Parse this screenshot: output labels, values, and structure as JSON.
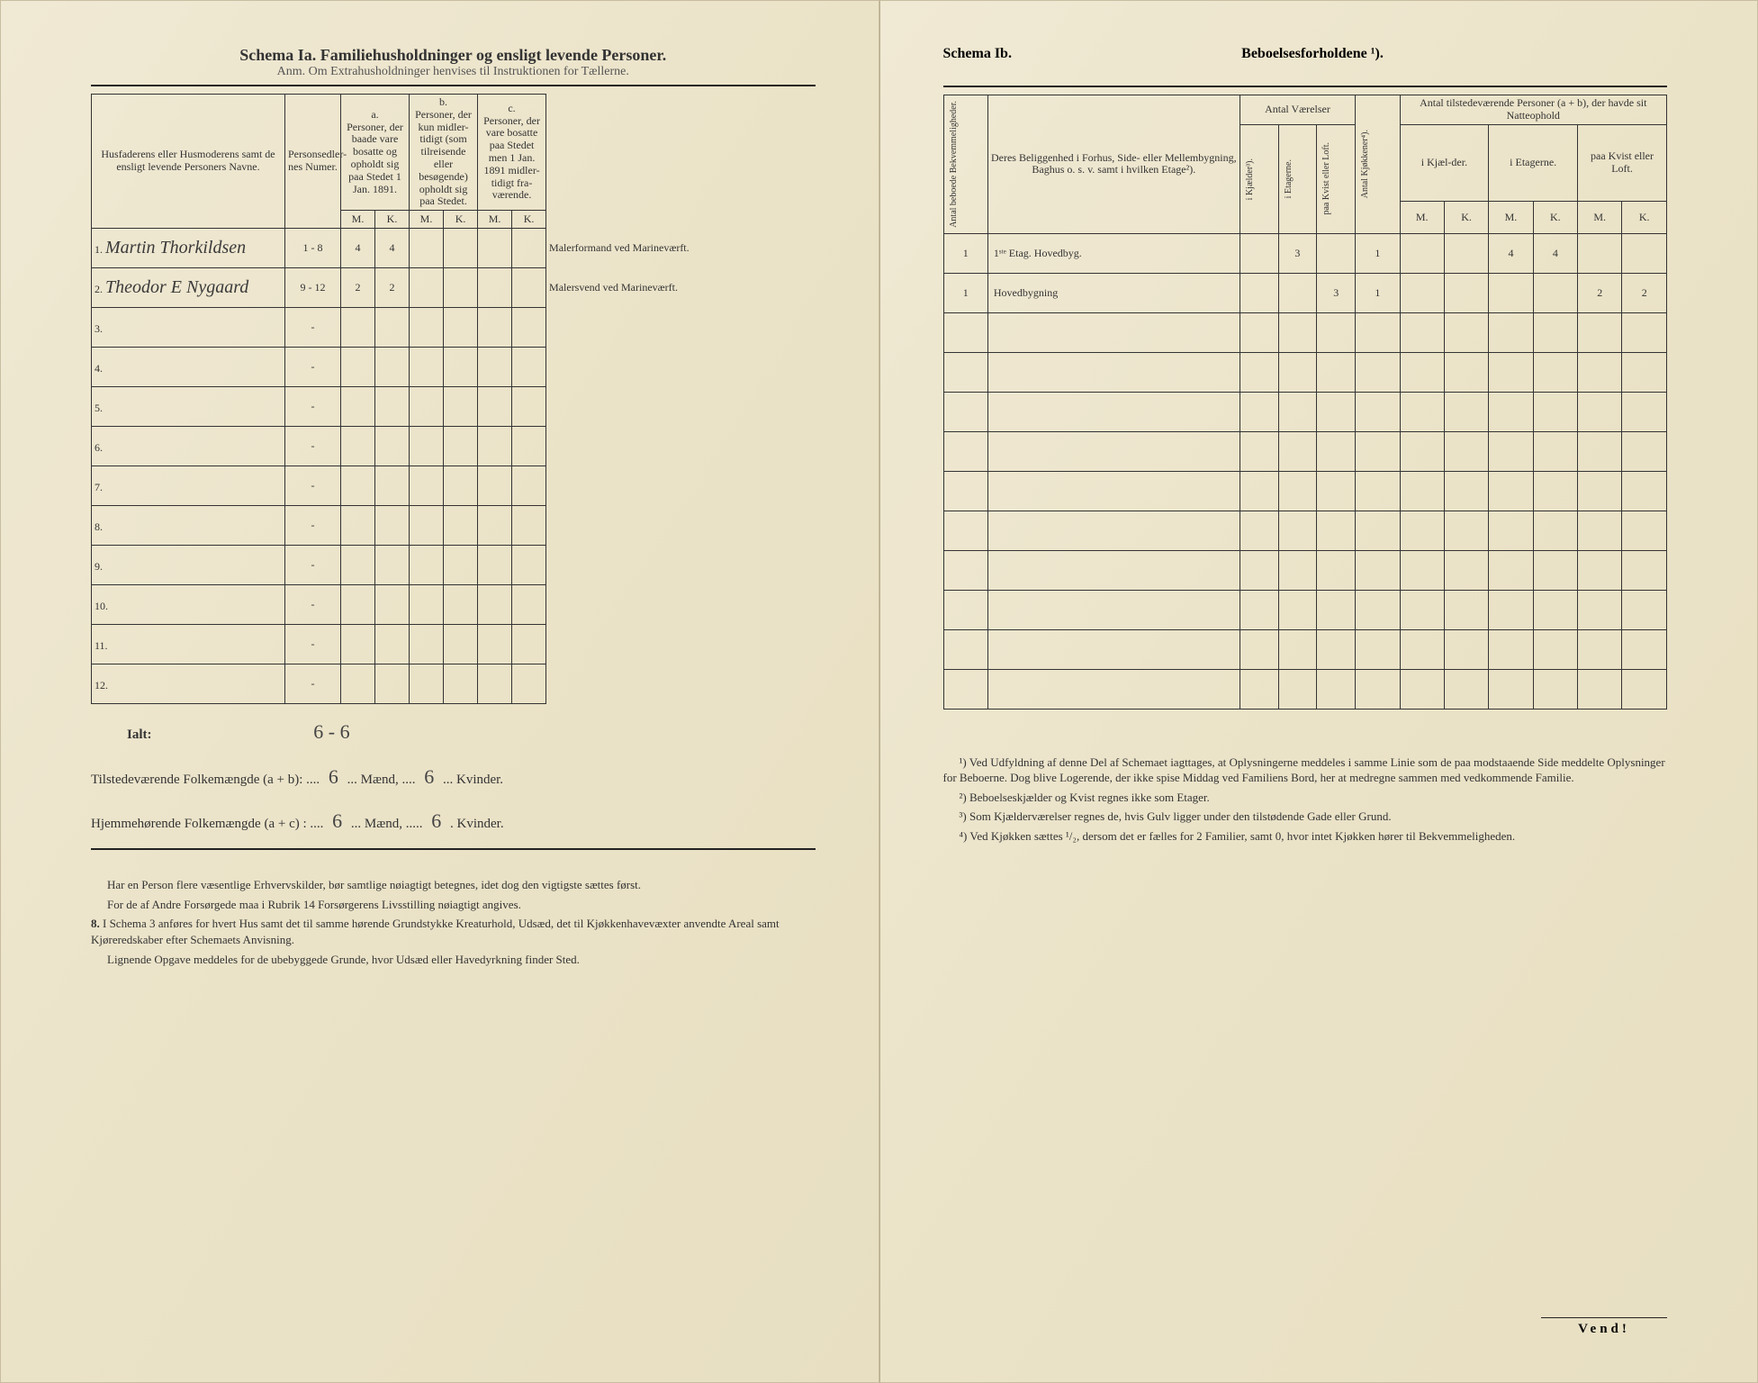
{
  "left": {
    "schema_label": "Schema Ia.",
    "schema_title": "Familiehusholdninger og ensligt levende Personer.",
    "subtitle": "Anm. Om Extrahusholdninger henvises til Instruktionen for Tællerne.",
    "head_name": "Husfaderens eller Husmoderens samt de ensligt levende Personers Navne.",
    "head_numer": "Personsedler-nes Numer.",
    "head_a": "a.",
    "head_a_text": "Personer, der baade vare bosatte og opholdt sig paa Stedet 1 Jan. 1891.",
    "head_b": "b.",
    "head_b_text": "Personer, der kun midler-tidigt (som tilreisende eller besøgende) opholdt sig paa Stedet.",
    "head_c": "c.",
    "head_c_text": "Personer, der vare bosatte paa Stedet men 1 Jan. 1891 midler-tidigt fra-værende.",
    "m": "M.",
    "k": "K.",
    "rows": [
      {
        "n": "1.",
        "name": "Martin Thorkildsen",
        "numer": "1 - 8",
        "aM": "4",
        "aK": "4",
        "note": "Malerformand ved Marineværft."
      },
      {
        "n": "2.",
        "name": "Theodor E Nygaard",
        "numer": "9 - 12",
        "aM": "2",
        "aK": "2",
        "note": "Malersvend ved Marineværft."
      },
      {
        "n": "3.",
        "name": "",
        "numer": "-"
      },
      {
        "n": "4.",
        "name": "",
        "numer": "-"
      },
      {
        "n": "5.",
        "name": "",
        "numer": "-"
      },
      {
        "n": "6.",
        "name": "",
        "numer": "-"
      },
      {
        "n": "7.",
        "name": "",
        "numer": "-"
      },
      {
        "n": "8.",
        "name": "",
        "numer": "-"
      },
      {
        "n": "9.",
        "name": "",
        "numer": "-"
      },
      {
        "n": "10.",
        "name": "",
        "numer": "-"
      },
      {
        "n": "11.",
        "name": "",
        "numer": "-"
      },
      {
        "n": "12.",
        "name": "",
        "numer": "-"
      }
    ],
    "ialt": "Ialt:",
    "ialt_pencil": "6 - 6",
    "totals1_label": "Tilstedeværende Folkemængde (a + b): ....",
    "totals1_m": "6",
    "totals1_mid": "... Mænd, ....",
    "totals1_k": "6",
    "totals1_end": "... Kvinder.",
    "totals2_label": "Hjemmehørende Folkemængde (a + c) : ....",
    "totals2_m": "6",
    "totals2_mid": "... Mænd, .....",
    "totals2_k": "6",
    "totals2_end": ". Kvinder.",
    "foot1": "Har en Person flere væsentlige Erhvervskilder, bør samtlige nøiagtigt betegnes, idet dog den vigtigste sættes først.",
    "foot2": "For de af Andre Forsørgede maa i Rubrik 14 Forsørgerens Livsstilling nøiagtigt angives.",
    "foot3_num": "8.",
    "foot3": "I Schema 3 anføres for hvert Hus samt det til samme hørende Grundstykke Kreaturhold, Udsæd, det til Kjøkkenhavevæxter anvendte Areal samt Kjøreredskaber efter Schemaets Anvisning.",
    "foot4": "Lignende Opgave meddeles for de ubebyggede Grunde, hvor Udsæd eller Havedyrkning finder Sted."
  },
  "right": {
    "schema_label": "Schema Ib.",
    "schema_title": "Beboelsesforholdene ¹).",
    "head_antal_bekv": "Antal beboede Bekvemmeligheder.",
    "head_belig": "Deres Beliggenhed i Forhus, Side- eller Mellembygning, Baghus o. s. v. samt i hvilken Etage²).",
    "head_vaer": "Antal Værelser",
    "head_kjok": "Antal Kjøkkener⁴).",
    "head_tilst": "Antal tilstedeværende Personer (a + b), der havde sit Natteophold",
    "sub_kjael": "i Kjælder³).",
    "sub_etag": "i Etagerne.",
    "sub_kvist": "paa Kvist eller Loft.",
    "sub_kjael2": "i Kjæl-der.",
    "sub_etag2": "i Etagerne.",
    "sub_kvist2": "paa Kvist eller Loft.",
    "m": "M.",
    "k": "K.",
    "rows": [
      {
        "bekv": "1",
        "belig": "1ˢᵗᵉ Etag. Hovedbyg.",
        "etag": "3",
        "kjok": "1",
        "eM": "4",
        "eK": "4"
      },
      {
        "bekv": "1",
        "belig": "Hovedbygning",
        "kvist": "3",
        "kjok": "1",
        "kM": "2",
        "kK": "2"
      }
    ],
    "foot1": "¹) Ved Udfyldning af denne Del af Schemaet iagttages, at Oplysningerne meddeles i samme Linie som de paa modstaaende Side meddelte Oplysninger for Beboerne. Dog blive Logerende, der ikke spise Middag ved Familiens Bord, her at medregne sammen med vedkommende Familie.",
    "foot2": "²) Beboelseskjælder og Kvist regnes ikke som Etager.",
    "foot3": "³) Som Kjælderværelser regnes de, hvis Gulv ligger under den tilstødende Gade eller Grund.",
    "foot4": "⁴) Ved Kjøkken sættes ¹/₂, dersom det er fælles for 2 Familier, samt 0, hvor intet Kjøkken hører til Bekvemmeligheden.",
    "vend": "Vend!"
  }
}
